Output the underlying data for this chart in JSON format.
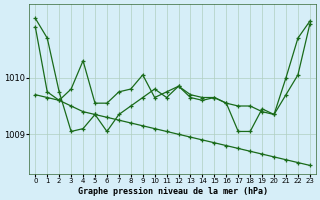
{
  "background_color": "#d6eef8",
  "grid_color": "#b0cfc0",
  "line_color": "#1a6b1a",
  "xlabel": "Graphe pression niveau de la mer (hPa)",
  "ylim": [
    1008.3,
    1011.3
  ],
  "yticks": [
    1009,
    1010
  ],
  "xlim": [
    -0.5,
    23.5
  ],
  "xticks": [
    0,
    1,
    2,
    3,
    4,
    5,
    6,
    7,
    8,
    9,
    10,
    11,
    12,
    13,
    14,
    15,
    16,
    17,
    18,
    19,
    20,
    21,
    22,
    23
  ],
  "series": [
    [
      1011.05,
      1010.7,
      1009.75,
      1009.05,
      1009.1,
      1009.35,
      1009.05,
      1009.35,
      1009.5,
      1009.65,
      1009.8,
      1009.65,
      1009.85,
      1009.7,
      1009.65,
      1009.65,
      1009.55,
      1009.05,
      1009.05,
      1009.45,
      1009.35,
      1010.0,
      1010.7,
      1011.0
    ],
    [
      1010.9,
      1009.75,
      1009.6,
      1009.8,
      1010.3,
      1009.55,
      1009.55,
      1009.75,
      1009.8,
      1010.05,
      1009.65,
      1009.75,
      1009.85,
      1009.65,
      1009.6,
      1009.65,
      1009.55,
      1009.5,
      1009.5,
      1009.4,
      1009.35,
      1009.7,
      1010.05,
      1010.95
    ],
    [
      1009.7,
      1009.65,
      1009.6,
      1009.5,
      1009.4,
      1009.35,
      1009.3,
      1009.25,
      1009.2,
      1009.15,
      1009.1,
      1009.05,
      1009.0,
      1008.95,
      1008.9,
      1008.85,
      1008.8,
      1008.75,
      1008.7,
      1008.65,
      1008.6,
      1008.55,
      1008.5,
      1008.45
    ]
  ]
}
